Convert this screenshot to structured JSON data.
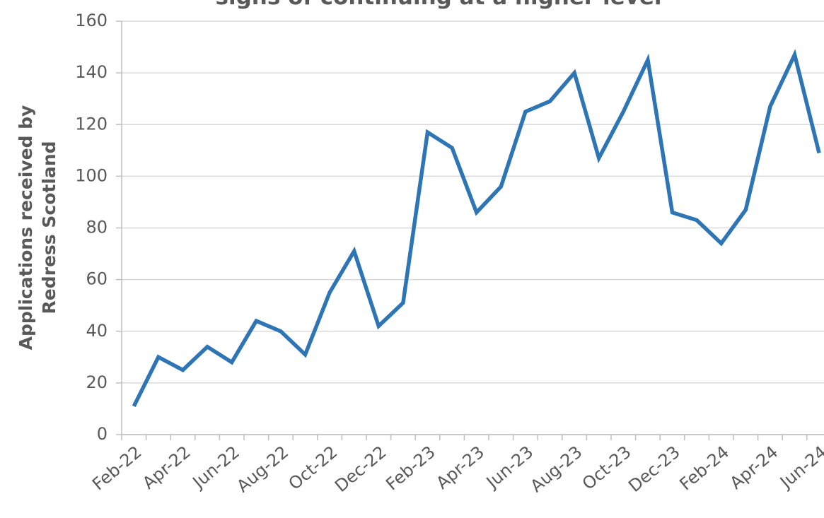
{
  "chart_data": {
    "type": "line",
    "title": "signs of continuing at a higher level",
    "y_label": [
      "Applications received by",
      "Redress Scotland"
    ],
    "categories": [
      "Feb-22",
      null,
      "Apr-22",
      null,
      "Jun-22",
      null,
      "Aug-22",
      null,
      "Oct-22",
      null,
      "Dec-22",
      null,
      "Feb-23",
      null,
      "Apr-23",
      null,
      "Jun-23",
      null,
      "Aug-23",
      null,
      "Oct-23",
      null,
      "Dec-23",
      null,
      "Feb-24",
      null,
      "Apr-24",
      null,
      "Jun-24"
    ],
    "series": [
      {
        "name": "Applications",
        "color": "#2e75b6",
        "values": [
          11,
          30,
          25,
          34,
          28,
          44,
          40,
          31,
          55,
          71,
          42,
          51,
          117,
          111,
          86,
          96,
          125,
          129,
          140,
          107,
          125,
          145,
          86,
          83,
          74,
          87,
          127,
          147,
          109
        ]
      }
    ],
    "ylim": [
      0,
      160
    ],
    "yticks": [
      0,
      20,
      40,
      60,
      80,
      100,
      120,
      140,
      160
    ],
    "grid": true
  }
}
